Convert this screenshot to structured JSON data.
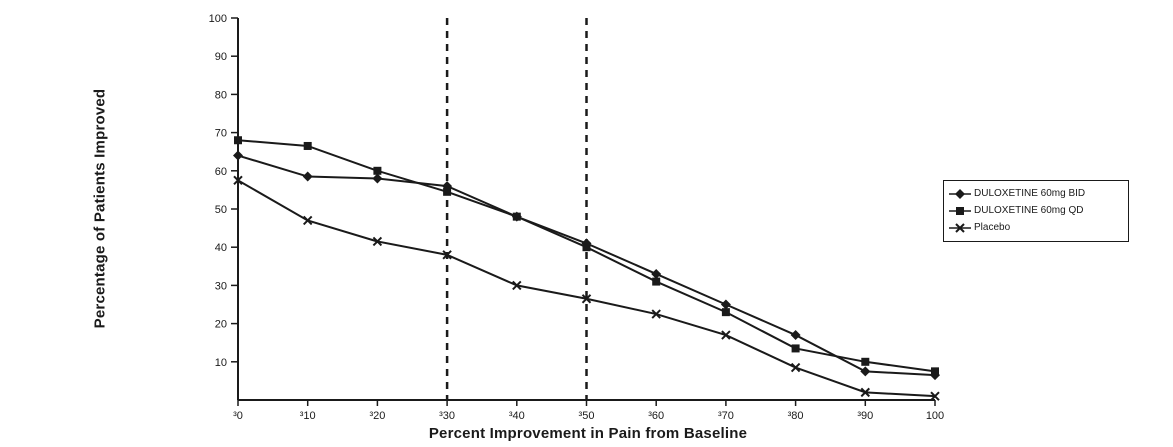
{
  "chart_data": {
    "type": "line",
    "title": "",
    "xlabel": "Percent Improvement in Pain from Baseline",
    "ylabel": "Percentage of Patients Improved",
    "x": [
      0,
      10,
      20,
      30,
      40,
      50,
      60,
      70,
      80,
      90,
      100
    ],
    "x_tick_labels": [
      "³0",
      "³10",
      "³20",
      "³30",
      "³40",
      "³50",
      "³60",
      "³70",
      "³80",
      "³90",
      "100"
    ],
    "y_ticks": [
      10,
      20,
      30,
      40,
      50,
      60,
      70,
      80,
      90,
      100
    ],
    "ylim": [
      0,
      100
    ],
    "xlim": [
      0,
      100
    ],
    "grid": false,
    "reference_lines_x": [
      30,
      50
    ],
    "line_color": "#1a1a1a",
    "legend_position": "right",
    "series": [
      {
        "name": "DULOXETINE 60mg BID",
        "marker": "diamond",
        "values": [
          64,
          58.5,
          58,
          56,
          48,
          41,
          33,
          25,
          17,
          7.5,
          6.5
        ]
      },
      {
        "name": "DULOXETINE 60mg QD",
        "marker": "square",
        "values": [
          68,
          66.5,
          60,
          54.5,
          48,
          40,
          31,
          23,
          13.5,
          10,
          7.5
        ]
      },
      {
        "name": "Placebo",
        "marker": "x",
        "values": [
          57.5,
          47,
          41.5,
          38,
          30,
          26.5,
          22.5,
          17,
          8.5,
          2,
          1
        ]
      }
    ]
  }
}
